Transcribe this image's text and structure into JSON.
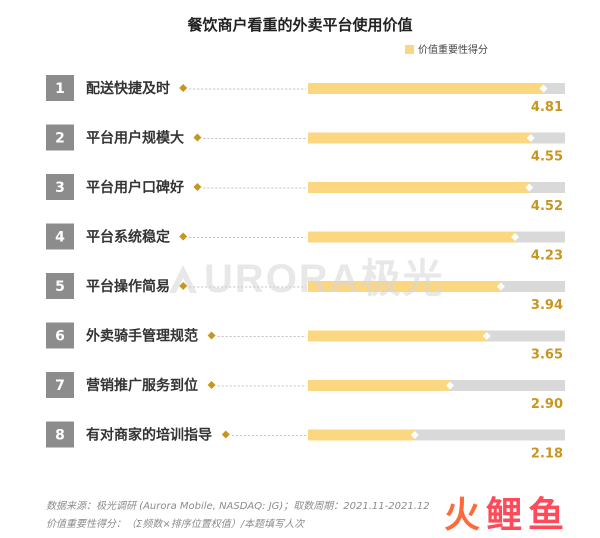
{
  "chart_data": {
    "type": "bar",
    "title": "餐饮商户看重的外卖平台使用价值",
    "legend": "价值重要性得分",
    "legend_position": "top-right",
    "xlim": [
      0,
      5.25
    ],
    "items": [
      {
        "rank": "1",
        "label": "配送快捷及时",
        "value": 4.81,
        "value_label": "4.81"
      },
      {
        "rank": "2",
        "label": "平台用户规模大",
        "value": 4.55,
        "value_label": "4.55"
      },
      {
        "rank": "3",
        "label": "平台用户口碑好",
        "value": 4.52,
        "value_label": "4.52"
      },
      {
        "rank": "4",
        "label": "平台系统稳定",
        "value": 4.23,
        "value_label": "4.23"
      },
      {
        "rank": "5",
        "label": "平台操作简易",
        "value": 3.94,
        "value_label": "3.94"
      },
      {
        "rank": "6",
        "label": "外卖骑手管理规范",
        "value": 3.65,
        "value_label": "3.65"
      },
      {
        "rank": "7",
        "label": "营销推广服务到位",
        "value": 2.9,
        "value_label": "2.90"
      },
      {
        "rank": "8",
        "label": "有对商家的培训指导",
        "value": 2.18,
        "value_label": "2.18"
      }
    ],
    "colors": {
      "bar": "#fcd782",
      "track": "#d9d9d9",
      "rank_box": "#8c8c8c",
      "value_text": "#c8961e",
      "diamond": "#c8961e",
      "label_text": "#333333"
    }
  },
  "watermark": "URORA极光",
  "footer": {
    "source": "数据来源：极光调研 (Aurora Mobile, NASDAQ: JG)；取数周期：2021.11-2021.12",
    "note": "价值重要性得分：（Σ频数×排序位置权值）/本题填写人次"
  },
  "brand": {
    "mark": "火",
    "text": "鲤鱼"
  }
}
